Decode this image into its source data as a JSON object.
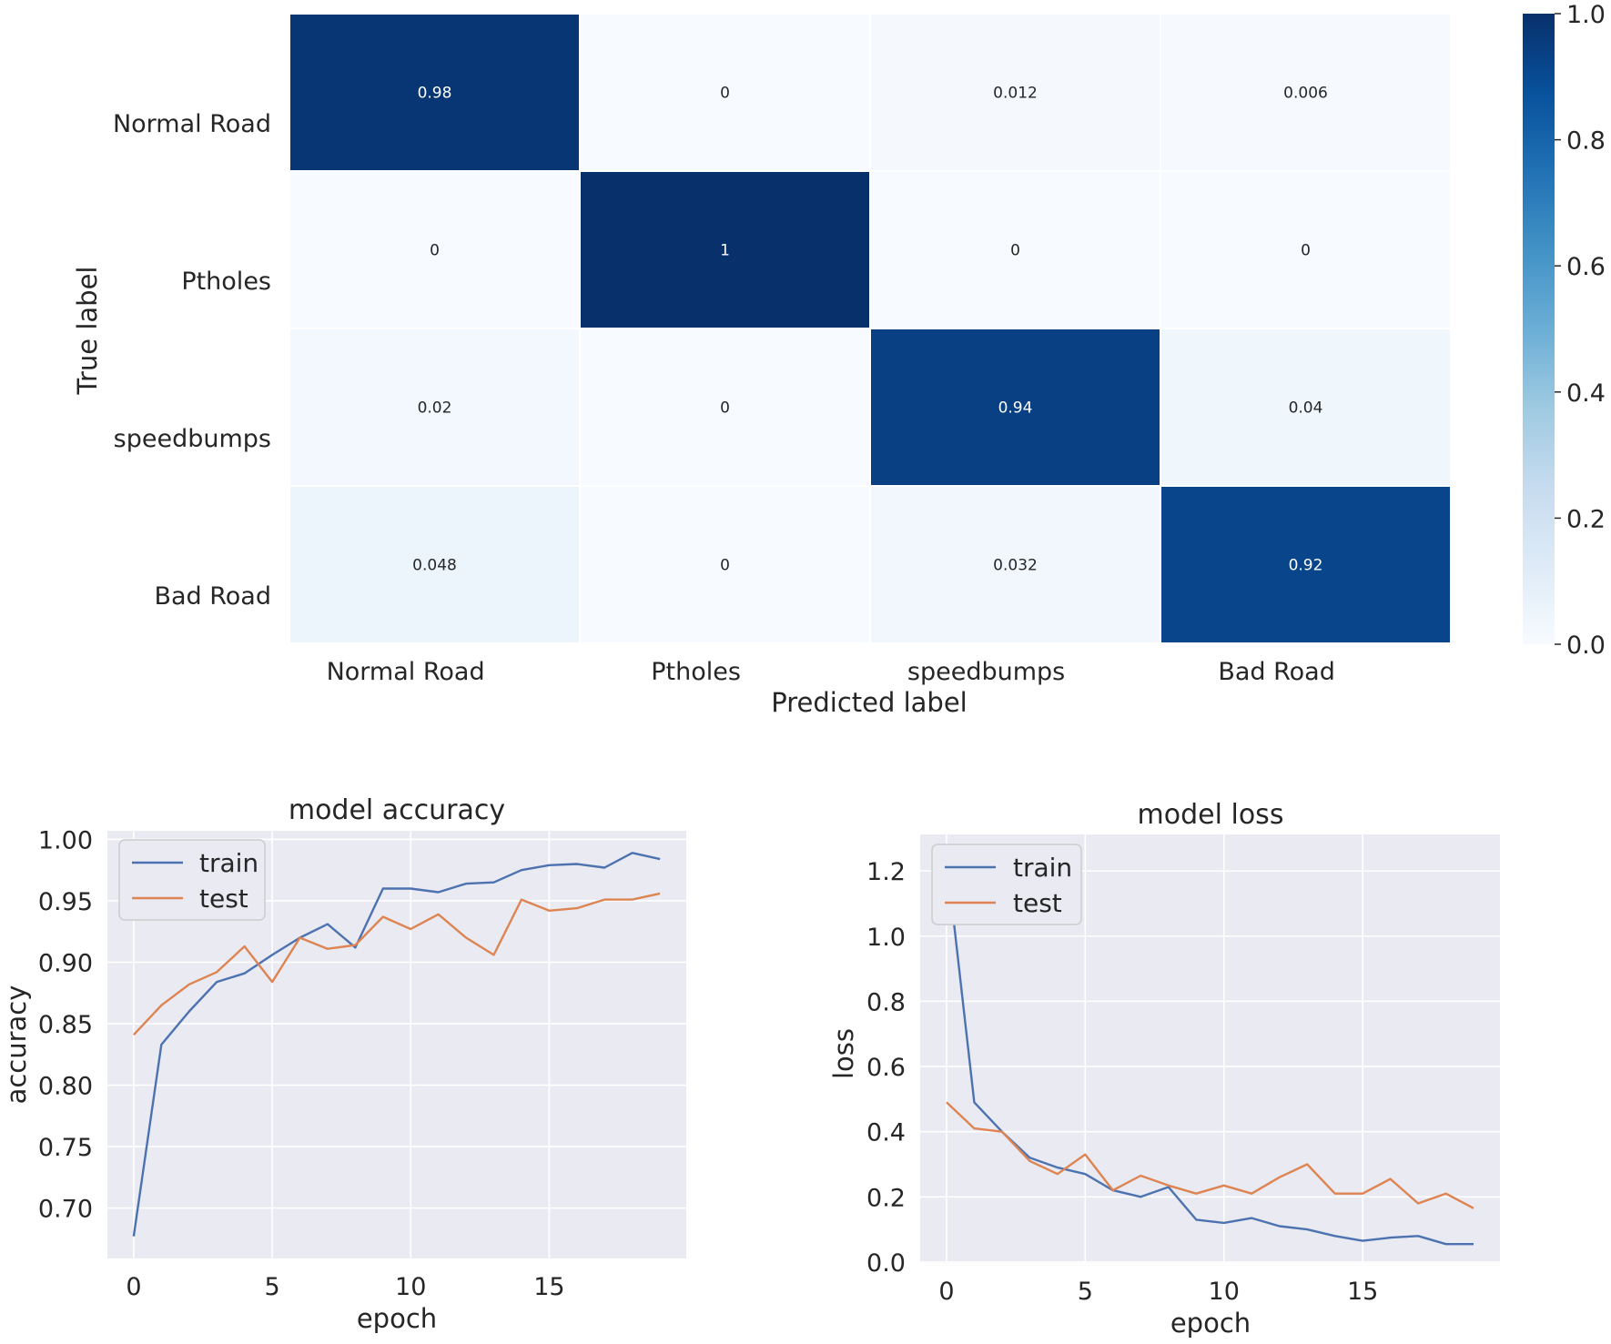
{
  "chart_data": [
    {
      "type": "heatmap",
      "title": "",
      "xlabel": "Predicted label",
      "ylabel": "True label",
      "x_categories": [
        "Normal Road",
        "Ptholes",
        "speedbumps",
        "Bad Road"
      ],
      "y_categories": [
        "Normal Road",
        "Ptholes",
        "speedbumps",
        "Bad Road"
      ],
      "values": [
        [
          0.98,
          0,
          0.012,
          0.006
        ],
        [
          0,
          1,
          0,
          0
        ],
        [
          0.02,
          0,
          0.94,
          0.04
        ],
        [
          0.048,
          0,
          0.032,
          0.92
        ]
      ],
      "value_labels": [
        [
          "0.98",
          "0",
          "0.012",
          "0.006"
        ],
        [
          "0",
          "1",
          "0",
          "0"
        ],
        [
          "0.02",
          "0",
          "0.94",
          "0.04"
        ],
        [
          "0.048",
          "0",
          "0.032",
          "0.92"
        ]
      ],
      "colorbar": {
        "range": [
          0,
          1
        ],
        "ticks": [
          0,
          0.2,
          0.4,
          0.6,
          0.8,
          1.0
        ],
        "tick_labels": [
          "0.0",
          "0.2",
          "0.4",
          "0.6",
          "0.8",
          "1.0"
        ],
        "colormap": "Blues"
      }
    },
    {
      "type": "line",
      "title": "model accuracy",
      "xlabel": "epoch",
      "ylabel": "accuracy",
      "x": [
        0,
        1,
        2,
        3,
        4,
        5,
        6,
        7,
        8,
        9,
        10,
        11,
        12,
        13,
        14,
        15,
        16,
        17,
        18,
        19
      ],
      "series": [
        {
          "name": "train",
          "color": "#4c72b0",
          "values": [
            0.677,
            0.833,
            0.86,
            0.884,
            0.891,
            0.906,
            0.92,
            0.931,
            0.912,
            0.96,
            0.96,
            0.957,
            0.964,
            0.965,
            0.975,
            0.979,
            0.98,
            0.977,
            0.989,
            0.984
          ]
        },
        {
          "name": "test",
          "color": "#dd8452",
          "values": [
            0.841,
            0.865,
            0.882,
            0.892,
            0.913,
            0.884,
            0.92,
            0.911,
            0.914,
            0.937,
            0.927,
            0.939,
            0.92,
            0.906,
            0.951,
            0.942,
            0.944,
            0.951,
            0.951,
            0.956
          ]
        }
      ],
      "xlim": [
        -0.95,
        19.95
      ],
      "ylim": [
        0.659,
        1.007
      ],
      "xticks": [
        0,
        5,
        10,
        15
      ],
      "xtick_labels": [
        "0",
        "5",
        "10",
        "15"
      ],
      "yticks": [
        0.7,
        0.75,
        0.8,
        0.85,
        0.9,
        0.95,
        1.0
      ],
      "ytick_labels": [
        "0.70",
        "0.75",
        "0.80",
        "0.85",
        "0.90",
        "0.95",
        "1.00"
      ],
      "legend": "upper-left"
    },
    {
      "type": "line",
      "title": "model loss",
      "xlabel": "epoch",
      "ylabel": "loss",
      "x": [
        0,
        1,
        2,
        3,
        4,
        5,
        6,
        7,
        8,
        9,
        10,
        11,
        12,
        13,
        14,
        15,
        16,
        17,
        18,
        19
      ],
      "series": [
        {
          "name": "train",
          "color": "#4c72b0",
          "values": [
            1.24,
            0.49,
            0.4,
            0.32,
            0.29,
            0.27,
            0.22,
            0.2,
            0.23,
            0.13,
            0.12,
            0.135,
            0.11,
            0.1,
            0.08,
            0.065,
            0.075,
            0.08,
            0.055,
            0.055
          ]
        },
        {
          "name": "test",
          "color": "#dd8452",
          "values": [
            0.49,
            0.41,
            0.4,
            0.31,
            0.27,
            0.33,
            0.22,
            0.265,
            0.235,
            0.21,
            0.235,
            0.21,
            0.26,
            0.3,
            0.21,
            0.21,
            0.255,
            0.18,
            0.21,
            0.165
          ]
        }
      ],
      "xlim": [
        -0.95,
        19.95
      ],
      "ylim": [
        -0.003,
        1.312
      ],
      "xticks": [
        0,
        5,
        10,
        15
      ],
      "xtick_labels": [
        "0",
        "5",
        "10",
        "15"
      ],
      "yticks": [
        0.0,
        0.2,
        0.4,
        0.6,
        0.8,
        1.0,
        1.2
      ],
      "ytick_labels": [
        "0.0",
        "0.2",
        "0.4",
        "0.6",
        "0.8",
        "1.0",
        "1.2"
      ],
      "legend": "upper-left"
    }
  ]
}
